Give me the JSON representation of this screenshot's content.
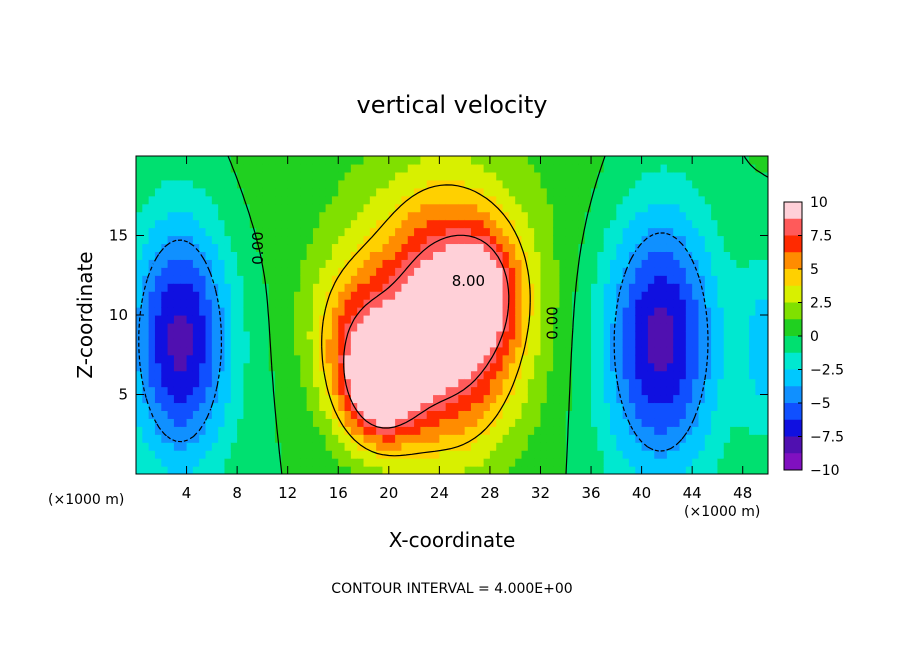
{
  "chart_data": {
    "type": "heatmap",
    "title": "vertical velocity",
    "xlabel": "X-coordinate",
    "ylabel": "Z-coordinate",
    "x_unit": "(×1000 m)",
    "x_unit_right": "(×1000 m)",
    "xlim": [
      0,
      50
    ],
    "ylim": [
      0,
      20
    ],
    "xticks": [
      4,
      8,
      12,
      16,
      20,
      24,
      28,
      32,
      36,
      40,
      44,
      48
    ],
    "yticks": [
      5,
      10,
      15
    ],
    "footer": "CONTOUR INTERVAL = 4.000E+00",
    "colorbar": {
      "range": [
        -10,
        10
      ],
      "ticks": [
        "10",
        "7.5",
        "5",
        "2.5",
        "0",
        "−2.5",
        "−5",
        "−7.5",
        "−10"
      ],
      "colors": [
        "#ffd0d8",
        "#ff5a5a",
        "#ff2a00",
        "#ff8c00",
        "#ffd000",
        "#d8f000",
        "#80e000",
        "#20d020",
        "#00e070",
        "#00e8d0",
        "#00c8ff",
        "#1090ff",
        "#1050ff",
        "#1010e0",
        "#5010b0",
        "#8010c0"
      ]
    },
    "contour_labels": [
      {
        "text": "0.00",
        "x": 9.7,
        "z": 14.2,
        "rotate": -90
      },
      {
        "text": "8.00",
        "x": 26.3,
        "z": 12.1,
        "rotate": 0
      },
      {
        "text": "0.00",
        "x": 33.0,
        "z": 9.5,
        "rotate": -90
      }
    ],
    "features": [
      {
        "kind": "updraft",
        "x": 24.5,
        "z": 9.5,
        "sx": 4.2,
        "sz": 5.5,
        "amp": 11
      },
      {
        "kind": "updraft",
        "x": 19.2,
        "z": 5.5,
        "sx": 2.2,
        "sz": 2.6,
        "amp": 8
      },
      {
        "kind": "updraft",
        "x": 17.0,
        "z": 9.0,
        "sx": 2.6,
        "sz": 3.5,
        "amp": 4
      },
      {
        "kind": "updraft",
        "x": 27.6,
        "z": 11.5,
        "sx": 2.0,
        "sz": 2.5,
        "amp": 4
      },
      {
        "kind": "downdraft",
        "x": 3.5,
        "z": 8.5,
        "sx": 2.8,
        "sz": 5.5,
        "amp": -8
      },
      {
        "kind": "downdraft",
        "x": 41.5,
        "z": 8.5,
        "sx": 3.2,
        "sz": 6.0,
        "amp": -8
      },
      {
        "kind": "downdraft",
        "x": 49.8,
        "z": 8.0,
        "sx": 1.4,
        "sz": 4.0,
        "amp": -3
      },
      {
        "kind": "bias",
        "x": 24.0,
        "z": 18.0,
        "sx": 14.0,
        "sz": 5.0,
        "amp": 0.8
      }
    ]
  }
}
